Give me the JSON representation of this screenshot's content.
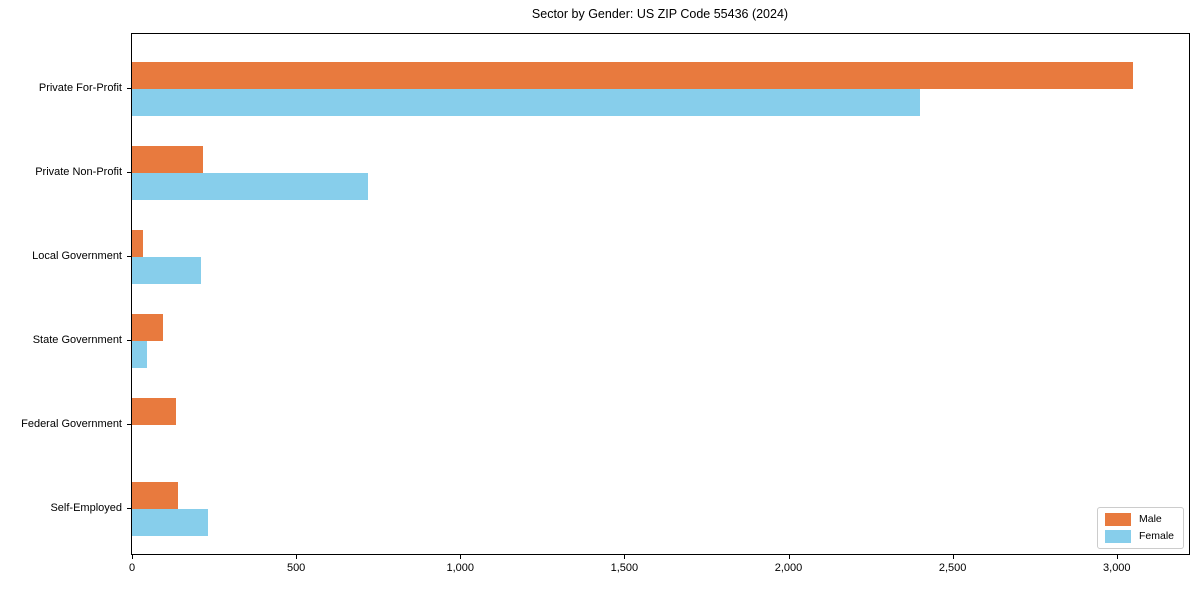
{
  "chart_data": {
    "type": "bar",
    "orientation": "horizontal",
    "title": "Sector by Gender: US ZIP Code 55436 (2024)",
    "categories": [
      "Private For-Profit",
      "Private Non-Profit",
      "Local Government",
      "State Government",
      "Federal Government",
      "Self-Employed"
    ],
    "series": [
      {
        "name": "Male",
        "color": "#e87a3e",
        "values": [
          3050,
          215,
          35,
          95,
          135,
          140
        ]
      },
      {
        "name": "Female",
        "color": "#87ceeb",
        "values": [
          2400,
          720,
          210,
          45,
          0,
          230
        ]
      }
    ],
    "xlabel": "",
    "ylabel": "",
    "xlim": [
      0,
      3220
    ],
    "x_ticks": [
      0,
      500,
      1000,
      1500,
      2000,
      2500,
      3000
    ],
    "x_tick_labels": [
      "0",
      "500",
      "1,000",
      "1,500",
      "2,000",
      "2,500",
      "3,000"
    ],
    "grid": false,
    "legend": {
      "position": "lower-right",
      "entries": [
        "Male",
        "Female"
      ]
    }
  }
}
